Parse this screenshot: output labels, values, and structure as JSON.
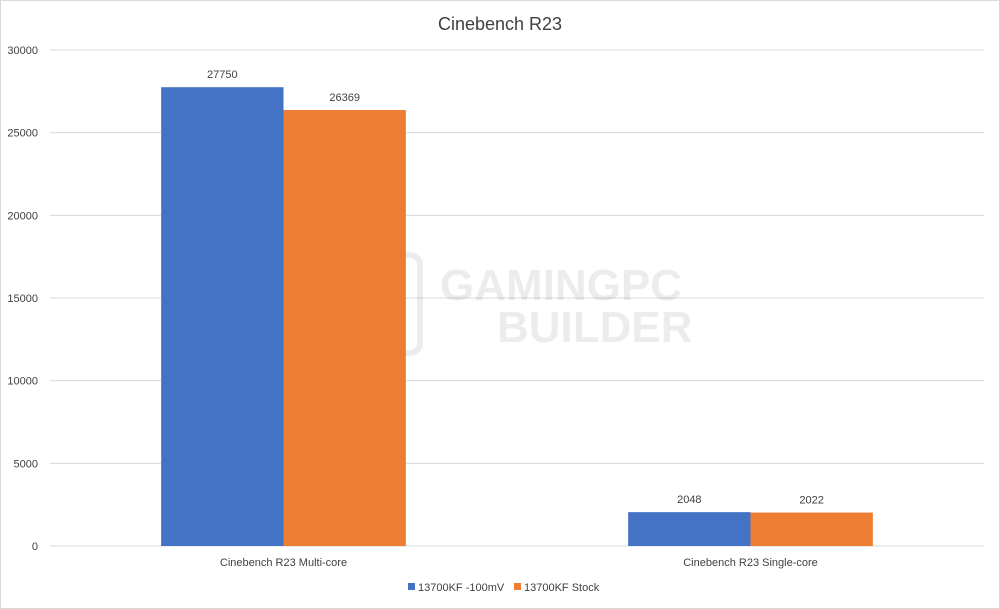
{
  "chart_data": {
    "type": "bar",
    "title": "Cinebench R23",
    "categories": [
      "Cinebench R23 Multi-core",
      "Cinebench R23 Single-core"
    ],
    "series": [
      {
        "name": "13700KF -100mV",
        "values": [
          27750,
          2048
        ],
        "color": "#4472c4"
      },
      {
        "name": "13700KF Stock",
        "values": [
          26369,
          2022
        ],
        "color": "#ed7d31"
      }
    ],
    "ylim": [
      0,
      30000
    ],
    "yticks": [
      0,
      5000,
      10000,
      15000,
      20000,
      25000,
      30000
    ],
    "grid": true,
    "legend": "bottom",
    "watermark": {
      "line1": "GAMINGPC",
      "line2": "BUILDER"
    }
  }
}
